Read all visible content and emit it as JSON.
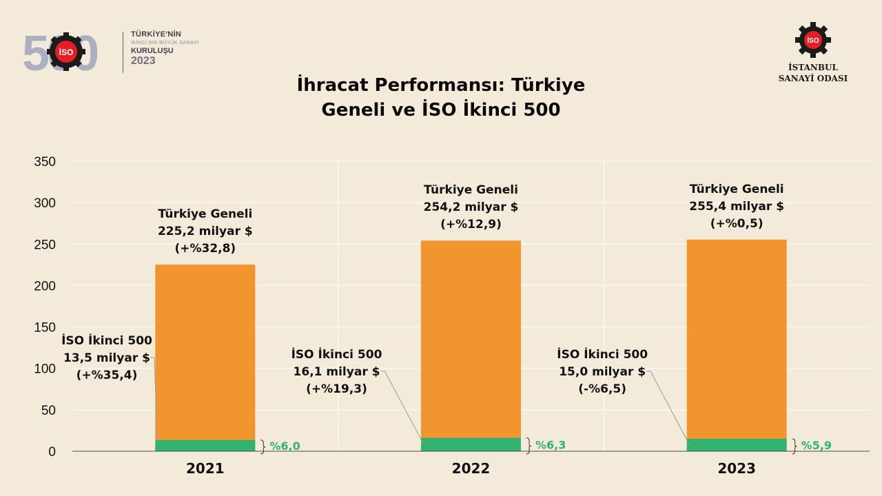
{
  "branding": {
    "event_logo_number": "500",
    "event_line1": "TÜRKİYE'NİN",
    "event_line2": "İKİNCİ 500 BÜYÜK SANAYİ",
    "event_line3": "KURULUŞU",
    "event_year": "2023",
    "iso_badge": "İSO",
    "org_line1": "İSTANBUL",
    "org_line2": "SANAYİ ODASI"
  },
  "title_lines": [
    "İhracat Performansı: Türkiye",
    "Geneli ve İSO İkinci 500"
  ],
  "colors": {
    "turkey": "#f2952e",
    "iso": "#2fb36e",
    "share_text": "#2fb36e",
    "background": "#f4ead9"
  },
  "chart_data": {
    "type": "bar",
    "stacked": true,
    "title": "İhracat Performansı: Türkiye Geneli ve İSO İkinci 500",
    "categories": [
      "2021",
      "2022",
      "2023"
    ],
    "ylim": [
      0,
      350
    ],
    "yticks": [
      0,
      50,
      100,
      150,
      200,
      250,
      300,
      350
    ],
    "grid": true,
    "series": [
      {
        "name": "İSO İkinci 500",
        "values": [
          13.5,
          16.1,
          15.0
        ]
      },
      {
        "name": "Türkiye Geneli",
        "values": [
          225.2,
          254.2,
          255.4
        ]
      }
    ],
    "turkey_labels": [
      [
        "Türkiye Geneli",
        "225,2 milyar $",
        "(+%32,8)"
      ],
      [
        "Türkiye Geneli",
        "254,2 milyar $",
        "(+%12,9)"
      ],
      [
        "Türkiye Geneli",
        "255,4 milyar $",
        "(+%0,5)"
      ]
    ],
    "iso_labels": [
      [
        "İSO İkinci 500",
        "13,5 milyar $",
        "(+%35,4)"
      ],
      [
        "İSO İkinci 500",
        "16,1 milyar $",
        "(+%19,3)"
      ],
      [
        "İSO İkinci 500",
        "15,0 milyar $",
        "(-%6,5)"
      ]
    ],
    "share_labels": [
      "%6,0",
      "%6,3",
      "%5,9"
    ]
  }
}
